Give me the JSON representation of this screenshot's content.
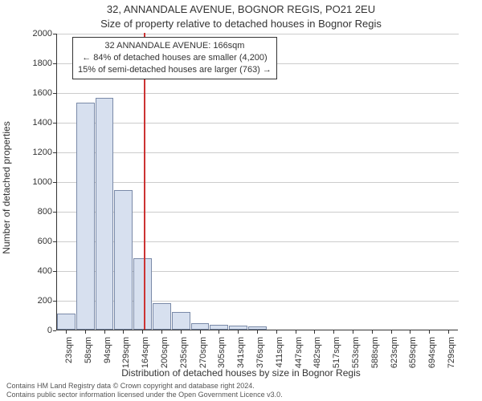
{
  "title_main": "32, ANNANDALE AVENUE, BOGNOR REGIS, PO21 2EU",
  "title_sub": "Size of property relative to detached houses in Bognor Regis",
  "ylabel": "Number of detached properties",
  "xlabel": "Distribution of detached houses by size in Bognor Regis",
  "chart": {
    "type": "histogram",
    "ymax": 2000,
    "ytick_step": 200,
    "bar_fill": "#d7e0ef",
    "bar_border": "#7a8aa8",
    "grid_color": "#cccccc",
    "marker_color": "#cc3333",
    "marker_x_value": 166,
    "categories": [
      "23sqm",
      "58sqm",
      "94sqm",
      "129sqm",
      "164sqm",
      "200sqm",
      "235sqm",
      "270sqm",
      "305sqm",
      "341sqm",
      "376sqm",
      "411sqm",
      "447sqm",
      "482sqm",
      "517sqm",
      "553sqm",
      "588sqm",
      "623sqm",
      "659sqm",
      "694sqm",
      "729sqm"
    ],
    "values": [
      110,
      1530,
      1560,
      940,
      480,
      180,
      120,
      45,
      35,
      25,
      20,
      0,
      0,
      0,
      0,
      0,
      0,
      0,
      0,
      0,
      0
    ]
  },
  "annotation": {
    "line1": "32 ANNANDALE AVENUE: 166sqm",
    "line2": "← 84% of detached houses are smaller (4,200)",
    "line3": "15% of semi-detached houses are larger (763) →"
  },
  "footer": {
    "line1": "Contains HM Land Registry data © Crown copyright and database right 2024.",
    "line2": "Contains public sector information licensed under the Open Government Licence v3.0."
  }
}
